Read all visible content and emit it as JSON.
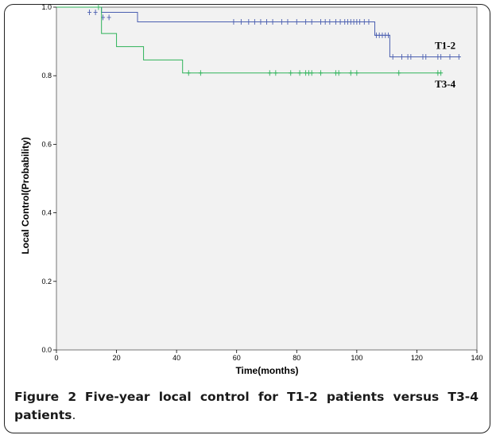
{
  "chart_data": {
    "type": "line",
    "subtype": "kaplan-meier step",
    "xlabel": "Time(months)",
    "ylabel": "Local Control(Probability)",
    "xlim": [
      0,
      140
    ],
    "ylim": [
      0.0,
      1.0
    ],
    "x_ticks": [
      0,
      20,
      40,
      60,
      80,
      100,
      120,
      140
    ],
    "y_ticks": [
      0.0,
      0.2,
      0.4,
      0.6,
      0.8,
      1.0
    ],
    "x_tick_labels": [
      "0",
      "20",
      "40",
      "60",
      "80",
      "100",
      "120",
      "140"
    ],
    "y_tick_labels": [
      "0.0",
      "0.2",
      "0.4",
      "0.6",
      "0.8",
      "1.0"
    ],
    "grid": false,
    "series": [
      {
        "name": "T1-2",
        "color": "#4a5eb0",
        "steps": [
          [
            0,
            1.0
          ],
          [
            15,
            0.985
          ],
          [
            27,
            0.957
          ],
          [
            106,
            0.918
          ],
          [
            111,
            0.855
          ],
          [
            134,
            0.855
          ]
        ],
        "censored": [
          [
            11,
            0.985
          ],
          [
            13,
            0.985
          ],
          [
            15.5,
            0.97
          ],
          [
            17.5,
            0.97
          ],
          [
            59,
            0.957
          ],
          [
            61.5,
            0.957
          ],
          [
            64,
            0.957
          ],
          [
            66,
            0.957
          ],
          [
            68,
            0.957
          ],
          [
            70,
            0.957
          ],
          [
            72,
            0.957
          ],
          [
            75,
            0.957
          ],
          [
            77,
            0.957
          ],
          [
            80,
            0.957
          ],
          [
            83,
            0.957
          ],
          [
            85,
            0.957
          ],
          [
            88,
            0.957
          ],
          [
            89.5,
            0.957
          ],
          [
            91,
            0.957
          ],
          [
            93,
            0.957
          ],
          [
            94.5,
            0.957
          ],
          [
            96,
            0.957
          ],
          [
            97,
            0.957
          ],
          [
            98,
            0.957
          ],
          [
            99,
            0.957
          ],
          [
            100,
            0.957
          ],
          [
            101,
            0.957
          ],
          [
            102.5,
            0.957
          ],
          [
            104,
            0.957
          ],
          [
            106.5,
            0.918
          ],
          [
            107.5,
            0.918
          ],
          [
            108.5,
            0.918
          ],
          [
            109.5,
            0.918
          ],
          [
            110.5,
            0.918
          ],
          [
            112,
            0.855
          ],
          [
            115,
            0.855
          ],
          [
            117,
            0.855
          ],
          [
            118,
            0.855
          ],
          [
            122,
            0.855
          ],
          [
            123,
            0.855
          ],
          [
            127,
            0.855
          ],
          [
            128,
            0.855
          ],
          [
            131,
            0.855
          ],
          [
            134,
            0.855
          ]
        ]
      },
      {
        "name": "T3-4",
        "color": "#2fb35a",
        "steps": [
          [
            0,
            1.0
          ],
          [
            15,
            0.923
          ],
          [
            20,
            0.885
          ],
          [
            29,
            0.846
          ],
          [
            42,
            0.808
          ],
          [
            128,
            0.808
          ]
        ],
        "censored": [
          [
            14,
            1.0
          ],
          [
            44,
            0.808
          ],
          [
            48,
            0.808
          ],
          [
            71,
            0.808
          ],
          [
            73,
            0.808
          ],
          [
            78,
            0.808
          ],
          [
            81,
            0.808
          ],
          [
            83,
            0.808
          ],
          [
            84,
            0.808
          ],
          [
            85,
            0.808
          ],
          [
            88,
            0.808
          ],
          [
            93,
            0.808
          ],
          [
            94,
            0.808
          ],
          [
            98,
            0.808
          ],
          [
            100,
            0.808
          ],
          [
            114,
            0.808
          ],
          [
            127,
            0.808
          ],
          [
            128,
            0.808
          ]
        ]
      }
    ],
    "series_labels": [
      {
        "text": "T1-2",
        "x": 126,
        "y": 0.878
      },
      {
        "text": "T3-4",
        "x": 126,
        "y": 0.766
      }
    ]
  },
  "caption": {
    "label": "Figure 2",
    "title": "Five-year local control for T1-2 patients versus T3-4 patients",
    "end": "."
  }
}
